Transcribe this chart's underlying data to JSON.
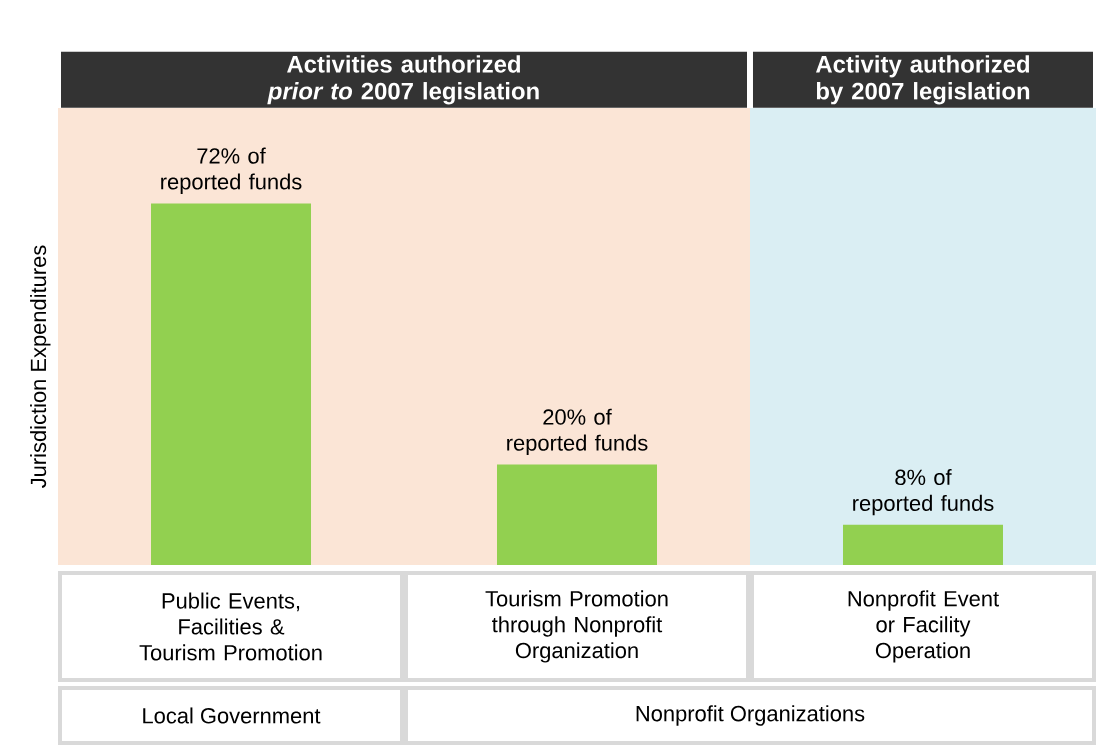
{
  "chart_data": {
    "type": "bar",
    "categories": [
      "Public Events, Facilities & Tourism Promotion",
      "Tourism Promotion through Nonprofit Organization",
      "Nonprofit Event or Facility Operation"
    ],
    "values": [
      72,
      20,
      8
    ],
    "value_labels": [
      "72% of reported funds",
      "20% of reported funds",
      "8% of reported funds"
    ],
    "color": "#92d050",
    "ylabel": "Jurisdiction Expenditures",
    "ylim": [
      0,
      91
    ],
    "bands": [
      {
        "axis": "x",
        "from": "Public Events, Facilities & Tourism Promotion",
        "to": "Tourism Promotion through Nonprofit Organization",
        "label": "Activities authorized *prior to* 2007 legislation",
        "color": "#fbe5d6"
      },
      {
        "axis": "x",
        "from": "Nonprofit Event or Facility Operation",
        "to": "Nonprofit Event or Facility Operation",
        "label": "Activity authorized by 2007 legislation",
        "color": "#daeef3"
      }
    ],
    "annotations": [
      "Local Government",
      "Nonprofit Organizations"
    ]
  }
}
